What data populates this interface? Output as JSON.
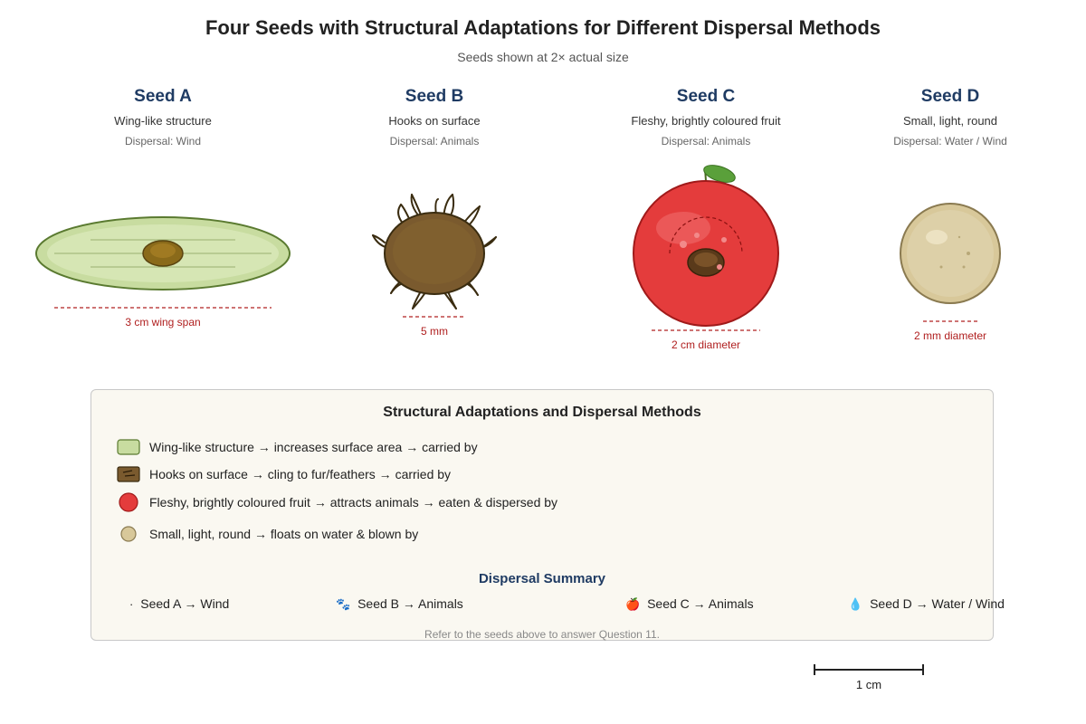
{
  "header": {
    "title": "Four Seeds with Structural Adaptations for Different Dispersal Methods",
    "subtitle": "Seeds shown at 2× actual size"
  },
  "seeds": [
    {
      "name": "Seed A",
      "structure": "Wing-like structure",
      "dispersal": "Dispersal: Wind",
      "scale": "3 cm wing span"
    },
    {
      "name": "Seed B",
      "structure": "Hooks on surface",
      "dispersal": "Dispersal: Animals",
      "scale": "5 mm"
    },
    {
      "name": "Seed C",
      "structure": "Fleshy, brightly coloured fruit",
      "dispersal": "Dispersal: Animals",
      "scale": "2 cm diameter"
    },
    {
      "name": "Seed D",
      "structure": "Small, light, round",
      "dispersal": "Dispersal: Water / Wind",
      "scale": "2 mm diameter"
    }
  ],
  "legend": {
    "title": "Structural Adaptations and Dispersal Methods",
    "items": [
      {
        "text": "Wing-like structure → increases surface area → carried by",
        "swatch": "wing-swatch-icon",
        "color": "#c8dca0"
      },
      {
        "text": "Hooks on surface → cling to fur/feathers → carried by",
        "swatch": "hooks-swatch-icon",
        "color": "#7a5a2e"
      },
      {
        "text": "Fleshy, brightly coloured fruit → attracts animals → eaten & dispersed by",
        "swatch": "fruit-swatch-icon",
        "color": "#e43c3c"
      },
      {
        "text": "Small, light, round → floats on water & blown by",
        "swatch": "round-seed-swatch-icon",
        "color": "#d8c89a"
      }
    ]
  },
  "summary": {
    "title": "Dispersal Summary",
    "items": [
      {
        "icon": "wind-icon",
        "glyph": "·",
        "text": "Seed A → Wind"
      },
      {
        "icon": "paw-prints-icon",
        "glyph": "🐾",
        "text": "Seed B → Animals"
      },
      {
        "icon": "apple-icon",
        "glyph": "🍎",
        "text": "Seed C → Animals"
      },
      {
        "icon": "water-drop-icon",
        "glyph": "💧",
        "text": "Seed D → Water / Wind"
      }
    ]
  },
  "footnote": "Refer to the seeds above to answer Question 11.",
  "scalebar": {
    "label": "1 cm"
  },
  "colors": {
    "title_blue": "#1f3b63",
    "scale_red": "#b02020",
    "wing_green": "#c8dca0",
    "hook_brown": "#7a5a2e",
    "fruit_red": "#e43c3c",
    "round_tan": "#d8c89a"
  }
}
